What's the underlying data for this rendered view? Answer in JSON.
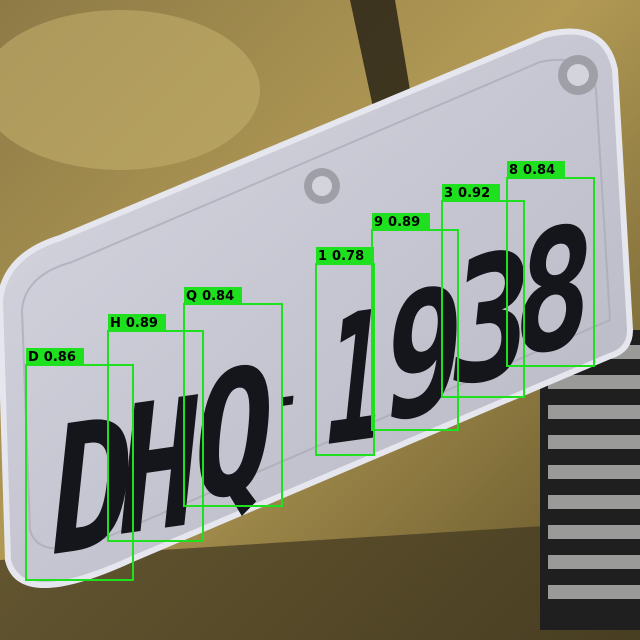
{
  "plate": {
    "characters": [
      "D",
      "H",
      "Q",
      "-",
      "1",
      "9",
      "3",
      "8"
    ]
  },
  "detections": [
    {
      "label": "D",
      "score": "0.86"
    },
    {
      "label": "H",
      "score": "0.89"
    },
    {
      "label": "Q",
      "score": "0.84"
    },
    {
      "label": "1",
      "score": "0.78"
    },
    {
      "label": "9",
      "score": "0.89"
    },
    {
      "label": "3",
      "score": "0.92"
    },
    {
      "label": "8",
      "score": "0.84"
    }
  ],
  "colors": {
    "box": "#1ee01e",
    "plate": "#c9c9d6",
    "background": "#6b5a2c",
    "character": "#14161c"
  }
}
